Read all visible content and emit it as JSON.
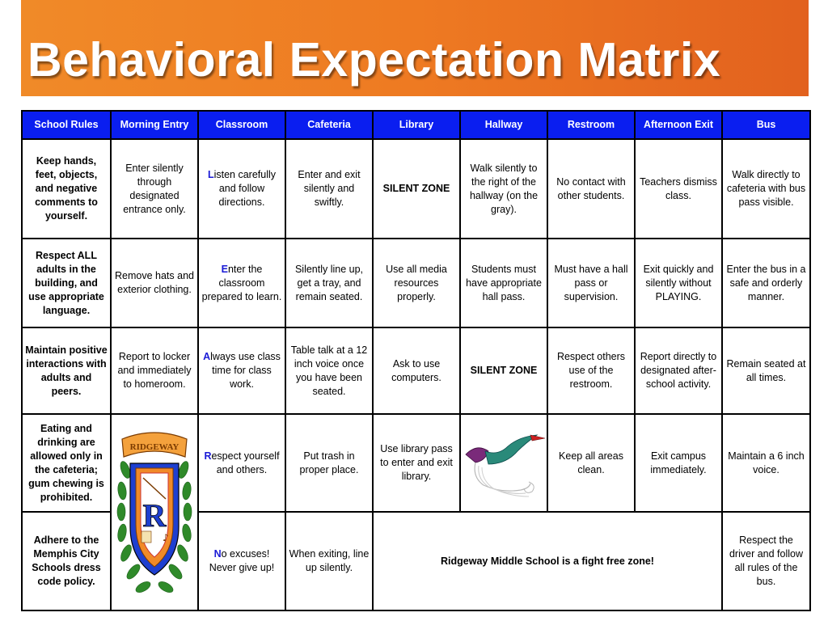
{
  "title": "Behavioral Expectation Matrix",
  "headers": [
    "School Rules",
    "Morning Entry",
    "Classroom",
    "Cafeteria",
    "Library",
    "Hallway",
    "Restroom",
    "Afternoon Exit",
    "Bus"
  ],
  "rows": [
    {
      "rule": "Keep hands, feet, objects, and negative comments to yourself.",
      "morning": "Enter silently through designated entrance only.",
      "class_first": "L",
      "class_rest": "isten carefully and follow directions.",
      "cafeteria": "Enter and exit silently and swiftly.",
      "library": "SILENT ZONE",
      "hallway": "Walk silently to the right of the hallway (on the gray).",
      "restroom": "No contact with other students.",
      "exit": "Teachers dismiss class.",
      "bus": "Walk directly to cafeteria with bus pass visible."
    },
    {
      "rule": "Respect ALL adults in the building, and use appropriate language.",
      "morning": "Remove hats and exterior clothing.",
      "class_first": "E",
      "class_rest": "nter the classroom prepared to learn.",
      "cafeteria": "Silently line up, get a tray, and remain seated.",
      "library": "Use all media resources properly.",
      "hallway": "Students must have appropriate hall pass.",
      "restroom": "Must have a hall pass or supervision.",
      "exit": "Exit quickly and silently without PLAYING.",
      "bus": "Enter the bus in a safe and orderly manner."
    },
    {
      "rule": "Maintain positive interactions with adults and peers.",
      "morning": "Report to locker and immediately to homeroom.",
      "class_first": "A",
      "class_rest": "lways use class time for class work.",
      "cafeteria": "Table talk at a 12 inch voice once you have been seated.",
      "library": "Ask to use computers.",
      "hallway": "SILENT ZONE",
      "restroom": "Respect others use of the restroom.",
      "exit": "Report directly to designated after-school activity.",
      "bus": "Remain seated at all times."
    },
    {
      "rule": "Eating and drinking are allowed only in the cafeteria; gum chewing is prohibited.",
      "class_first": "R",
      "class_rest": "espect yourself and others.",
      "cafeteria": "Put trash in proper place.",
      "library": "Use library pass to enter and exit library.",
      "restroom": "Keep all areas clean.",
      "exit": "Exit campus immediately.",
      "bus": "Maintain a 6 inch voice."
    },
    {
      "rule": "Adhere to the Memphis City Schools dress code policy.",
      "class_first": "N",
      "class_rest": "o excuses! Never give up!",
      "cafeteria": "When  exiting, line up silently.",
      "banner": "Ridgeway Middle School is a fight free zone!",
      "bus": "Respect the driver and follow all rules of the bus."
    }
  ],
  "crest": {
    "banner_text": "RIDGEWAY",
    "letter": "R"
  },
  "colors": {
    "header_bg": "#0a1ef0",
    "title_bg_start": "#f08a28",
    "title_bg_end": "#e2611e",
    "acrostic": "#1a1ad6"
  }
}
